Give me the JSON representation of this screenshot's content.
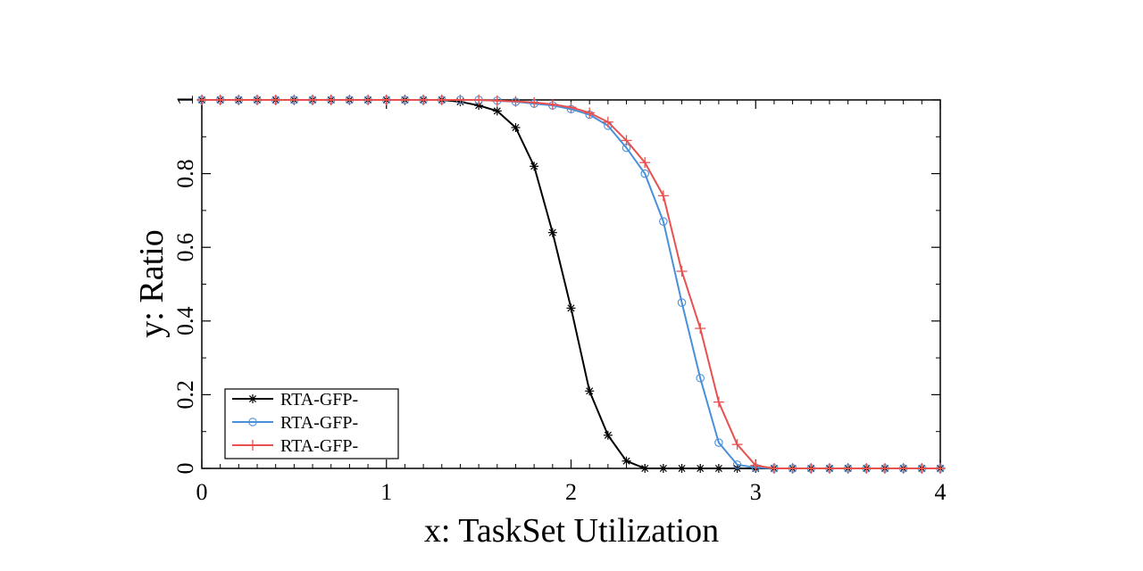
{
  "chart_data": {
    "type": "line",
    "title": "",
    "xlabel": "x: TaskSet Utilization",
    "ylabel": "y: Ratio",
    "xlim": [
      0,
      4
    ],
    "ylim": [
      0,
      1
    ],
    "xticks": [
      0,
      1,
      2,
      3,
      4
    ],
    "yticks": [
      0,
      0.2,
      0.4,
      0.6,
      0.8,
      1
    ],
    "grid": false,
    "legend_position": "bottom-left",
    "series": [
      {
        "name": "RTA-GFP-",
        "color": "#000000",
        "marker": "asterisk",
        "x": [
          0,
          0.1,
          0.2,
          0.3,
          0.4,
          0.5,
          0.6,
          0.7,
          0.8,
          0.9,
          1.0,
          1.1,
          1.2,
          1.3,
          1.4,
          1.5,
          1.6,
          1.7,
          1.8,
          1.9,
          2.0,
          2.1,
          2.2,
          2.3,
          2.4,
          2.5,
          2.6,
          2.7,
          2.8,
          2.9,
          3.0,
          3.1,
          3.2,
          3.3,
          3.4,
          3.5,
          3.6,
          3.7,
          3.8,
          3.9,
          4.0
        ],
        "y": [
          1,
          1,
          1,
          1,
          1,
          1,
          1,
          1,
          1,
          1,
          1,
          1,
          1,
          1,
          0.995,
          0.985,
          0.97,
          0.925,
          0.82,
          0.64,
          0.435,
          0.21,
          0.09,
          0.02,
          0,
          0,
          0,
          0,
          0,
          0,
          0,
          0,
          0,
          0,
          0,
          0,
          0,
          0,
          0,
          0,
          0
        ]
      },
      {
        "name": "RTA-GFP-",
        "color": "#4a90d9",
        "marker": "circle",
        "x": [
          0,
          0.1,
          0.2,
          0.3,
          0.4,
          0.5,
          0.6,
          0.7,
          0.8,
          0.9,
          1.0,
          1.1,
          1.2,
          1.3,
          1.4,
          1.5,
          1.6,
          1.7,
          1.8,
          1.9,
          2.0,
          2.1,
          2.2,
          2.3,
          2.4,
          2.5,
          2.6,
          2.7,
          2.8,
          2.9,
          3.0,
          3.1,
          3.2,
          3.3,
          3.4,
          3.5,
          3.6,
          3.7,
          3.8,
          3.9,
          4.0
        ],
        "y": [
          1,
          1,
          1,
          1,
          1,
          1,
          1,
          1,
          1,
          1,
          1,
          1,
          1,
          1,
          1,
          1,
          0.998,
          0.995,
          0.99,
          0.985,
          0.975,
          0.96,
          0.93,
          0.87,
          0.8,
          0.67,
          0.45,
          0.245,
          0.07,
          0.01,
          0.002,
          0,
          0,
          0,
          0,
          0,
          0,
          0,
          0,
          0,
          0
        ]
      },
      {
        "name": "RTA-GFP-",
        "color": "#e8514f",
        "marker": "plus",
        "x": [
          0,
          0.1,
          0.2,
          0.3,
          0.4,
          0.5,
          0.6,
          0.7,
          0.8,
          0.9,
          1.0,
          1.1,
          1.2,
          1.3,
          1.4,
          1.5,
          1.6,
          1.7,
          1.8,
          1.9,
          2.0,
          2.1,
          2.2,
          2.3,
          2.4,
          2.5,
          2.6,
          2.7,
          2.8,
          2.9,
          3.0,
          3.1,
          3.2,
          3.3,
          3.4,
          3.5,
          3.6,
          3.7,
          3.8,
          3.9,
          4.0
        ],
        "y": [
          1,
          1,
          1,
          1,
          1,
          1,
          1,
          1,
          1,
          1,
          1,
          1,
          1,
          1,
          1,
          1,
          0.998,
          0.996,
          0.993,
          0.988,
          0.98,
          0.965,
          0.94,
          0.89,
          0.83,
          0.74,
          0.535,
          0.38,
          0.18,
          0.065,
          0.008,
          0,
          0,
          0,
          0,
          0,
          0,
          0,
          0,
          0,
          0
        ]
      }
    ]
  }
}
